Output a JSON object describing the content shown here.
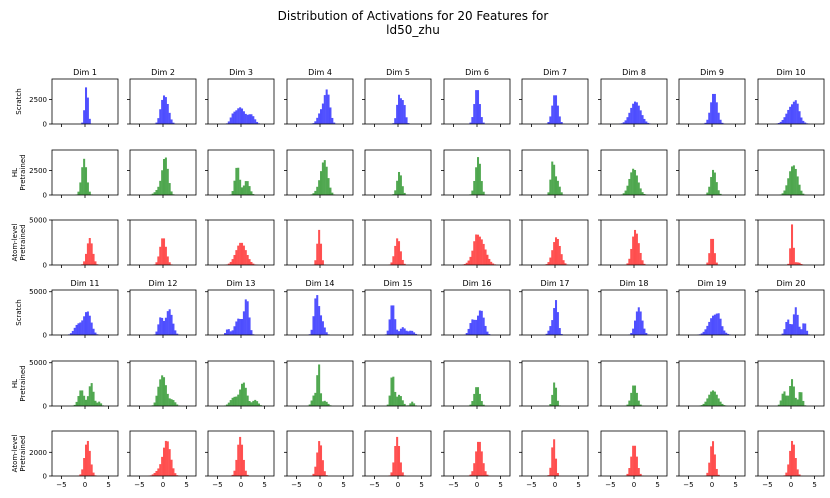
{
  "chart_data": {
    "type": "histogram-grid",
    "title_line1": "Distribution of Activations for 20 Features for",
    "title_line2": "ld50_zhu",
    "xlim": [
      -7,
      7
    ],
    "x_ticks": [
      -5,
      0,
      5
    ],
    "x_tick_labels": [
      "−5",
      "0",
      "5"
    ],
    "row_labels": [
      [
        "Scratch"
      ],
      [
        "HL",
        "Pretrained"
      ],
      [
        "Atom-level",
        "Pretrained"
      ],
      [
        "Scratch"
      ],
      [
        "HL",
        "Pretrained"
      ],
      [
        "Atom-level",
        "Pretrained"
      ]
    ],
    "row_colors": [
      "#3333ff",
      "#339933",
      "#ff3333",
      "#3333ff",
      "#339933",
      "#ff3333"
    ],
    "row_ylim": [
      4600,
      4600,
      5000,
      5200,
      5200,
      3800
    ],
    "row_yticks": [
      [
        0,
        2500
      ],
      [
        0,
        2500
      ],
      [
        0,
        5000
      ],
      [
        0,
        5000
      ],
      [
        0,
        5000
      ],
      [
        0,
        2000
      ]
    ],
    "row_yticks_labeled": [
      true,
      true,
      true,
      true,
      true,
      true
    ],
    "col_titles_top": [
      "Dim 1",
      "Dim 2",
      "Dim 3",
      "Dim 4",
      "Dim 5",
      "Dim 6",
      "Dim 7",
      "Dim 8",
      "Dim 9",
      "Dim 10"
    ],
    "col_titles_bottom": [
      "Dim 11",
      "Dim 12",
      "Dim 13",
      "Dim 14",
      "Dim 15",
      "Dim 16",
      "Dim 17",
      "Dim 18",
      "Dim 19",
      "Dim 20"
    ],
    "bins": {
      "start": -6,
      "width": 0.4,
      "count": 30
    },
    "dists": [
      [
        [
          [
            0.3,
            0.35,
            3900
          ]
        ],
        [
          [
            0.5,
            0.7,
            2600
          ],
          [
            -0.3,
            0.5,
            900
          ]
        ],
        [
          [
            -0.2,
            1.0,
            1700
          ],
          [
            2.2,
            0.7,
            900
          ],
          [
            -1.8,
            0.5,
            600
          ]
        ],
        [
          [
            1.5,
            0.6,
            3300
          ],
          [
            0.2,
            0.7,
            1200
          ]
        ],
        [
          [
            0.2,
            0.45,
            2900
          ],
          [
            1.2,
            0.4,
            2100
          ]
        ],
        [
          [
            0.0,
            0.55,
            3700
          ]
        ],
        [
          [
            0.0,
            0.6,
            3100
          ]
        ],
        [
          [
            0.3,
            1.1,
            2300
          ]
        ],
        [
          [
            0.4,
            0.7,
            3200
          ]
        ],
        [
          [
            0.3,
            1.2,
            1900
          ],
          [
            1.2,
            0.5,
            900
          ]
        ]
      ],
      [
        [
          [
            -0.2,
            0.55,
            3700
          ]
        ],
        [
          [
            0.5,
            0.6,
            3500
          ],
          [
            -0.5,
            0.9,
            800
          ]
        ],
        [
          [
            -0.8,
            0.5,
            3000
          ],
          [
            1.2,
            0.6,
            1500
          ]
        ],
        [
          [
            1.0,
            0.7,
            3200
          ],
          [
            0.0,
            0.8,
            800
          ]
        ],
        [
          [
            0.3,
            0.5,
            2400
          ]
        ],
        [
          [
            0.3,
            0.5,
            3800
          ],
          [
            -0.5,
            0.4,
            700
          ]
        ],
        [
          [
            -0.5,
            0.4,
            3400
          ],
          [
            0.5,
            0.5,
            1400
          ]
        ],
        [
          [
            -0.1,
            0.9,
            2700
          ]
        ],
        [
          [
            0.3,
            0.6,
            2600
          ]
        ],
        [
          [
            0.0,
            0.8,
            2100
          ],
          [
            1.0,
            0.7,
            1700
          ]
        ]
      ],
      [
        [
          [
            1.0,
            0.6,
            3000
          ]
        ],
        [
          [
            0.0,
            0.65,
            3100
          ]
        ],
        [
          [
            0.0,
            1.1,
            2500
          ]
        ],
        [
          [
            -0.2,
            0.4,
            3900
          ]
        ],
        [
          [
            -0.1,
            0.6,
            3000
          ]
        ],
        [
          [
            0.5,
            1.2,
            3100
          ],
          [
            -0.3,
            0.4,
            800
          ]
        ],
        [
          [
            0.3,
            0.8,
            3100
          ]
        ],
        [
          [
            0.2,
            0.65,
            3800
          ],
          [
            1.2,
            0.5,
            700
          ]
        ],
        [
          [
            0.0,
            0.45,
            3200
          ]
        ],
        [
          [
            0.2,
            0.3,
            4500
          ],
          [
            1.5,
            0.5,
            300
          ]
        ]
      ],
      [
        [
          [
            0.5,
            0.8,
            2700
          ],
          [
            -1.5,
            0.8,
            1200
          ]
        ],
        [
          [
            1.3,
            0.7,
            3000
          ],
          [
            -0.5,
            0.5,
            2000
          ]
        ],
        [
          [
            1.2,
            0.5,
            4100
          ],
          [
            -0.5,
            0.8,
            1900
          ],
          [
            -2.8,
            0.4,
            700
          ]
        ],
        [
          [
            -0.8,
            0.5,
            4400
          ],
          [
            0.3,
            0.6,
            1700
          ]
        ],
        [
          [
            -1.2,
            0.5,
            3700
          ],
          [
            1.0,
            0.6,
            900
          ],
          [
            2.8,
            0.6,
            500
          ]
        ],
        [
          [
            0.8,
            0.7,
            2900
          ],
          [
            -1.0,
            0.6,
            1700
          ]
        ],
        [
          [
            0.2,
            0.45,
            3900
          ],
          [
            -0.8,
            0.5,
            1000
          ]
        ],
        [
          [
            1.0,
            0.7,
            3200
          ]
        ],
        [
          [
            0.5,
            1.2,
            2300
          ],
          [
            1.5,
            0.4,
            800
          ]
        ],
        [
          [
            1.0,
            0.5,
            3200
          ],
          [
            -0.7,
            0.5,
            1800
          ],
          [
            2.8,
            0.4,
            1500
          ]
        ]
      ],
      [
        [
          [
            1.3,
            0.5,
            2700
          ],
          [
            -0.8,
            0.6,
            1900
          ],
          [
            3.0,
            0.4,
            500
          ]
        ],
        [
          [
            0.0,
            0.7,
            3400
          ],
          [
            -1.0,
            0.5,
            1000
          ],
          [
            2.0,
            0.6,
            700
          ]
        ],
        [
          [
            0.5,
            0.7,
            2700
          ],
          [
            -1.5,
            0.8,
            1000
          ],
          [
            3.0,
            0.6,
            700
          ]
        ],
        [
          [
            -0.3,
            0.3,
            4800
          ],
          [
            -1.2,
            0.5,
            1300
          ],
          [
            1.0,
            0.6,
            600
          ]
        ],
        [
          [
            -1.2,
            0.4,
            3700
          ],
          [
            0.3,
            0.6,
            1300
          ],
          [
            3.0,
            0.4,
            500
          ]
        ],
        [
          [
            0.0,
            0.6,
            2300
          ]
        ],
        [
          [
            -0.1,
            0.4,
            2800
          ]
        ],
        [
          [
            0.0,
            0.6,
            2500
          ]
        ],
        [
          [
            0.2,
            1.0,
            1800
          ]
        ],
        [
          [
            0.2,
            0.5,
            3100
          ],
          [
            -1.5,
            0.5,
            1700
          ],
          [
            2.0,
            0.4,
            1800
          ]
        ]
      ],
      [
        [
          [
            0.5,
            0.6,
            3000
          ]
        ],
        [
          [
            0.8,
            0.8,
            3000
          ],
          [
            -1.0,
            0.8,
            400
          ]
        ],
        [
          [
            -0.2,
            0.6,
            3300
          ]
        ],
        [
          [
            -0.1,
            0.55,
            3000
          ]
        ],
        [
          [
            -0.2,
            0.55,
            3300
          ]
        ],
        [
          [
            0.4,
            0.7,
            3000
          ]
        ],
        [
          [
            -0.3,
            0.4,
            3200
          ]
        ],
        [
          [
            0.0,
            0.6,
            2700
          ]
        ],
        [
          [
            0.1,
            0.5,
            3000
          ]
        ],
        [
          [
            0.3,
            0.6,
            3000
          ]
        ]
      ]
    ]
  }
}
